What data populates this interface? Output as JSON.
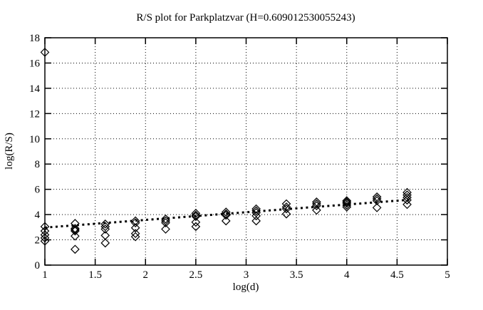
{
  "figure": {
    "background_color": "#ffffff",
    "foreground_color": "#000000"
  },
  "chart_data": {
    "type": "scatter",
    "title": "R/S plot for Parkplatzvar (H=0.609012530055243)",
    "hurst_exponent_shown_in_title": "0.609012530055243",
    "xlabel": "log(d)",
    "ylabel": "log(R/S)",
    "xlim": [
      1,
      5
    ],
    "ylim": [
      0,
      18
    ],
    "xticks": [
      1,
      1.5,
      2,
      2.5,
      3,
      3.5,
      4,
      4.5,
      5
    ],
    "yticks": [
      0,
      2,
      4,
      6,
      8,
      10,
      12,
      14,
      16,
      18
    ],
    "grid": true,
    "grid_style": "dotted",
    "legend_position": "none",
    "marker": "open-diamond",
    "marker_color": "#000000",
    "point_groups": [
      {
        "x": 1.0,
        "y": [
          16.85,
          3.05,
          2.7,
          2.4,
          2.15,
          1.9
        ]
      },
      {
        "x": 1.3,
        "y": [
          3.3,
          2.9,
          2.8,
          2.7,
          2.3,
          1.25
        ]
      },
      {
        "x": 1.6,
        "y": [
          3.25,
          3.05,
          2.85,
          2.35,
          1.75
        ]
      },
      {
        "x": 1.9,
        "y": [
          3.5,
          3.35,
          2.95,
          2.5,
          2.25
        ]
      },
      {
        "x": 2.2,
        "y": [
          3.65,
          3.5,
          3.35,
          2.85
        ]
      },
      {
        "x": 2.5,
        "y": [
          4.1,
          3.95,
          3.85,
          3.4,
          3.05
        ]
      },
      {
        "x": 2.8,
        "y": [
          4.2,
          4.05,
          3.95,
          3.5
        ]
      },
      {
        "x": 3.1,
        "y": [
          4.45,
          4.3,
          4.15,
          3.9,
          3.5
        ]
      },
      {
        "x": 3.4,
        "y": [
          4.85,
          4.6,
          4.45,
          4.05
        ]
      },
      {
        "x": 3.7,
        "y": [
          5.0,
          4.85,
          4.7,
          4.35
        ]
      },
      {
        "x": 4.0,
        "y": [
          5.1,
          5.0,
          4.9,
          4.75,
          4.6
        ]
      },
      {
        "x": 4.3,
        "y": [
          5.4,
          5.25,
          5.1,
          4.55
        ]
      },
      {
        "x": 4.6,
        "y": [
          5.75,
          5.55,
          5.35,
          5.15,
          4.8
        ]
      }
    ],
    "fit_line": {
      "style": "bold-dotted",
      "color": "#000000",
      "from": {
        "x": 1.0,
        "y": 2.97
      },
      "to": {
        "x": 4.65,
        "y": 5.19
      }
    }
  }
}
